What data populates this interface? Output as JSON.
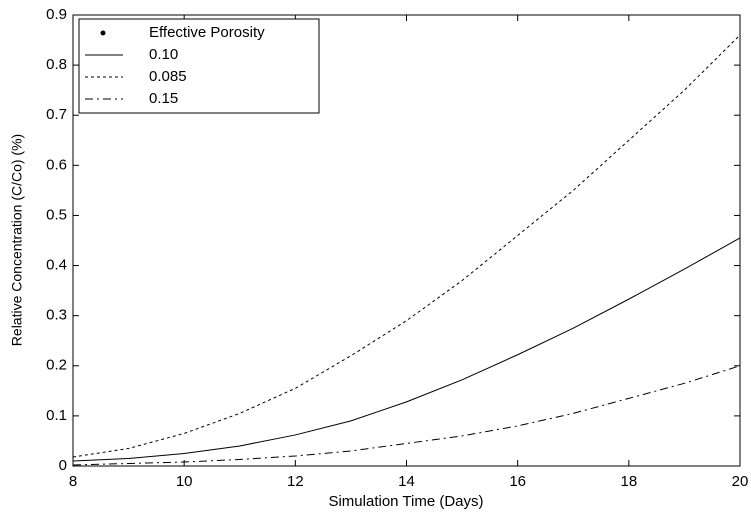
{
  "chart_data": {
    "type": "line",
    "x_label": "Simulation Time (Days)",
    "y_label": "Relative Concentration (C/Co)  (%)",
    "legend_title": "Effective Porosity",
    "legend": "upper-left",
    "x": [
      8,
      9,
      10,
      11,
      12,
      13,
      14,
      15,
      16,
      17,
      18,
      19,
      20
    ],
    "series": [
      {
        "name": "0.10",
        "color": "#000000",
        "style": "solid",
        "values": [
          0.01,
          0.015,
          0.025,
          0.04,
          0.062,
          0.09,
          0.128,
          0.172,
          0.222,
          0.275,
          0.333,
          0.393,
          0.455
        ]
      },
      {
        "name": "0.085",
        "color": "#000000",
        "style": "dashed",
        "values": [
          0.018,
          0.035,
          0.065,
          0.105,
          0.155,
          0.22,
          0.29,
          0.37,
          0.46,
          0.55,
          0.65,
          0.75,
          0.86
        ]
      },
      {
        "name": "0.15",
        "color": "#000000",
        "style": "dashdot",
        "values": [
          0.002,
          0.005,
          0.008,
          0.013,
          0.02,
          0.03,
          0.045,
          0.06,
          0.08,
          0.105,
          0.135,
          0.165,
          0.2
        ]
      }
    ],
    "xlim": [
      8,
      20
    ],
    "xticks": [
      8,
      10,
      12,
      14,
      16,
      18,
      20
    ],
    "ylim": [
      0,
      0.9
    ],
    "yticks": [
      0,
      0.1,
      0.2,
      0.3,
      0.4,
      0.5,
      0.6,
      0.7,
      0.8,
      0.9
    ],
    "grid": false
  }
}
